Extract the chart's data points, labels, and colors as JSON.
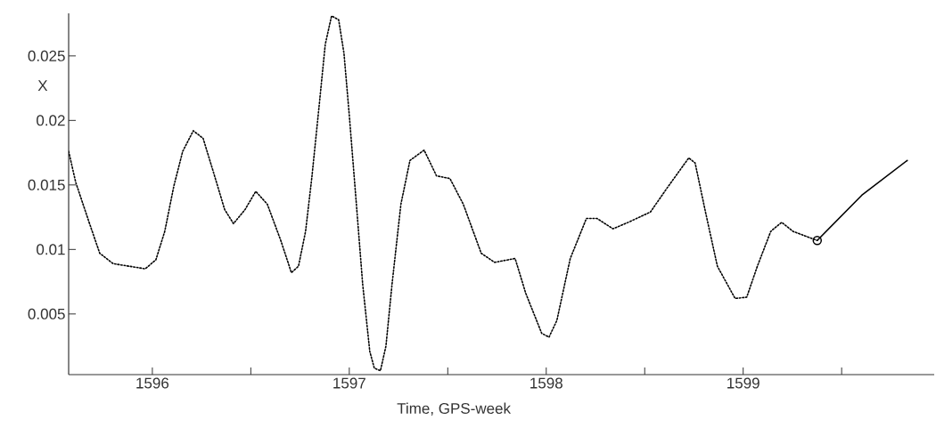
{
  "chart_data": {
    "type": "line",
    "xlabel": "Time, GPS-week",
    "ylabel": "X",
    "xlim": [
      1595.575,
      1599.97
    ],
    "ylim": [
      0.0003,
      0.0283
    ],
    "xticks": [
      1596,
      {
        "value": 1596.5,
        "label": null
      },
      1597,
      {
        "value": 1597.5,
        "label": null
      },
      1598,
      {
        "value": 1598.5,
        "label": null
      },
      1599,
      {
        "value": 1599.5,
        "label": null
      }
    ],
    "yticks": [
      0.005,
      0.01,
      0.015,
      0.02,
      0.025
    ],
    "series": [
      {
        "color": "#000000",
        "line_style": "dotted",
        "marker": "none",
        "x": [
          1595.575,
          1595.611,
          1595.679,
          1595.733,
          1595.801,
          1595.882,
          1595.964,
          1596.018,
          1596.063,
          1596.109,
          1596.154,
          1596.208,
          1596.258,
          1596.312,
          1596.367,
          1596.412,
          1596.471,
          1596.525,
          1596.584,
          1596.652,
          1596.706,
          1596.742,
          1596.778,
          1596.81,
          1596.846,
          1596.878,
          1596.91,
          1596.946,
          1596.973,
          1597.0,
          1597.036,
          1597.068,
          1597.104,
          1597.127,
          1597.158,
          1597.186,
          1597.217,
          1597.262,
          1597.308,
          1597.38,
          1597.443,
          1597.511,
          1597.579,
          1597.67,
          1597.738,
          1597.842,
          1597.896,
          1597.977,
          1598.014,
          1598.054,
          1598.122,
          1598.204,
          1598.258,
          1598.339,
          1598.416,
          1598.529,
          1598.62,
          1598.724,
          1598.756,
          1598.81,
          1598.869,
          1598.959,
          1599.018,
          1599.072,
          1599.14,
          1599.195,
          1599.253,
          1599.376
        ],
        "values": [
          0.0176,
          0.0152,
          0.0121,
          0.0097,
          0.0089,
          0.0087,
          0.0085,
          0.0092,
          0.0114,
          0.0149,
          0.0176,
          0.0192,
          0.0186,
          0.0159,
          0.0131,
          0.012,
          0.0131,
          0.0145,
          0.0135,
          0.0107,
          0.0082,
          0.0087,
          0.0114,
          0.0156,
          0.021,
          0.0259,
          0.0281,
          0.0278,
          0.0252,
          0.0204,
          0.0135,
          0.0073,
          0.0021,
          0.0008,
          0.0006,
          0.0025,
          0.0073,
          0.0135,
          0.0169,
          0.0177,
          0.0157,
          0.0155,
          0.0135,
          0.0097,
          0.009,
          0.0093,
          0.0066,
          0.0035,
          0.0032,
          0.0045,
          0.0093,
          0.0124,
          0.0124,
          0.0116,
          0.0121,
          0.0129,
          0.0149,
          0.0171,
          0.0167,
          0.0128,
          0.0087,
          0.0062,
          0.0063,
          0.0087,
          0.0114,
          0.0121,
          0.0114,
          0.0107
        ]
      },
      {
        "color": "#000000",
        "line_style": "solid",
        "marker": "none",
        "x": [
          1599.376,
          1599.602,
          1599.833
        ],
        "values": [
          0.0107,
          0.0142,
          0.0169
        ]
      },
      {
        "type": "scatter",
        "color": "#000000",
        "marker": "circle",
        "x": [
          1599.376
        ],
        "values": [
          0.0107
        ]
      }
    ]
  }
}
